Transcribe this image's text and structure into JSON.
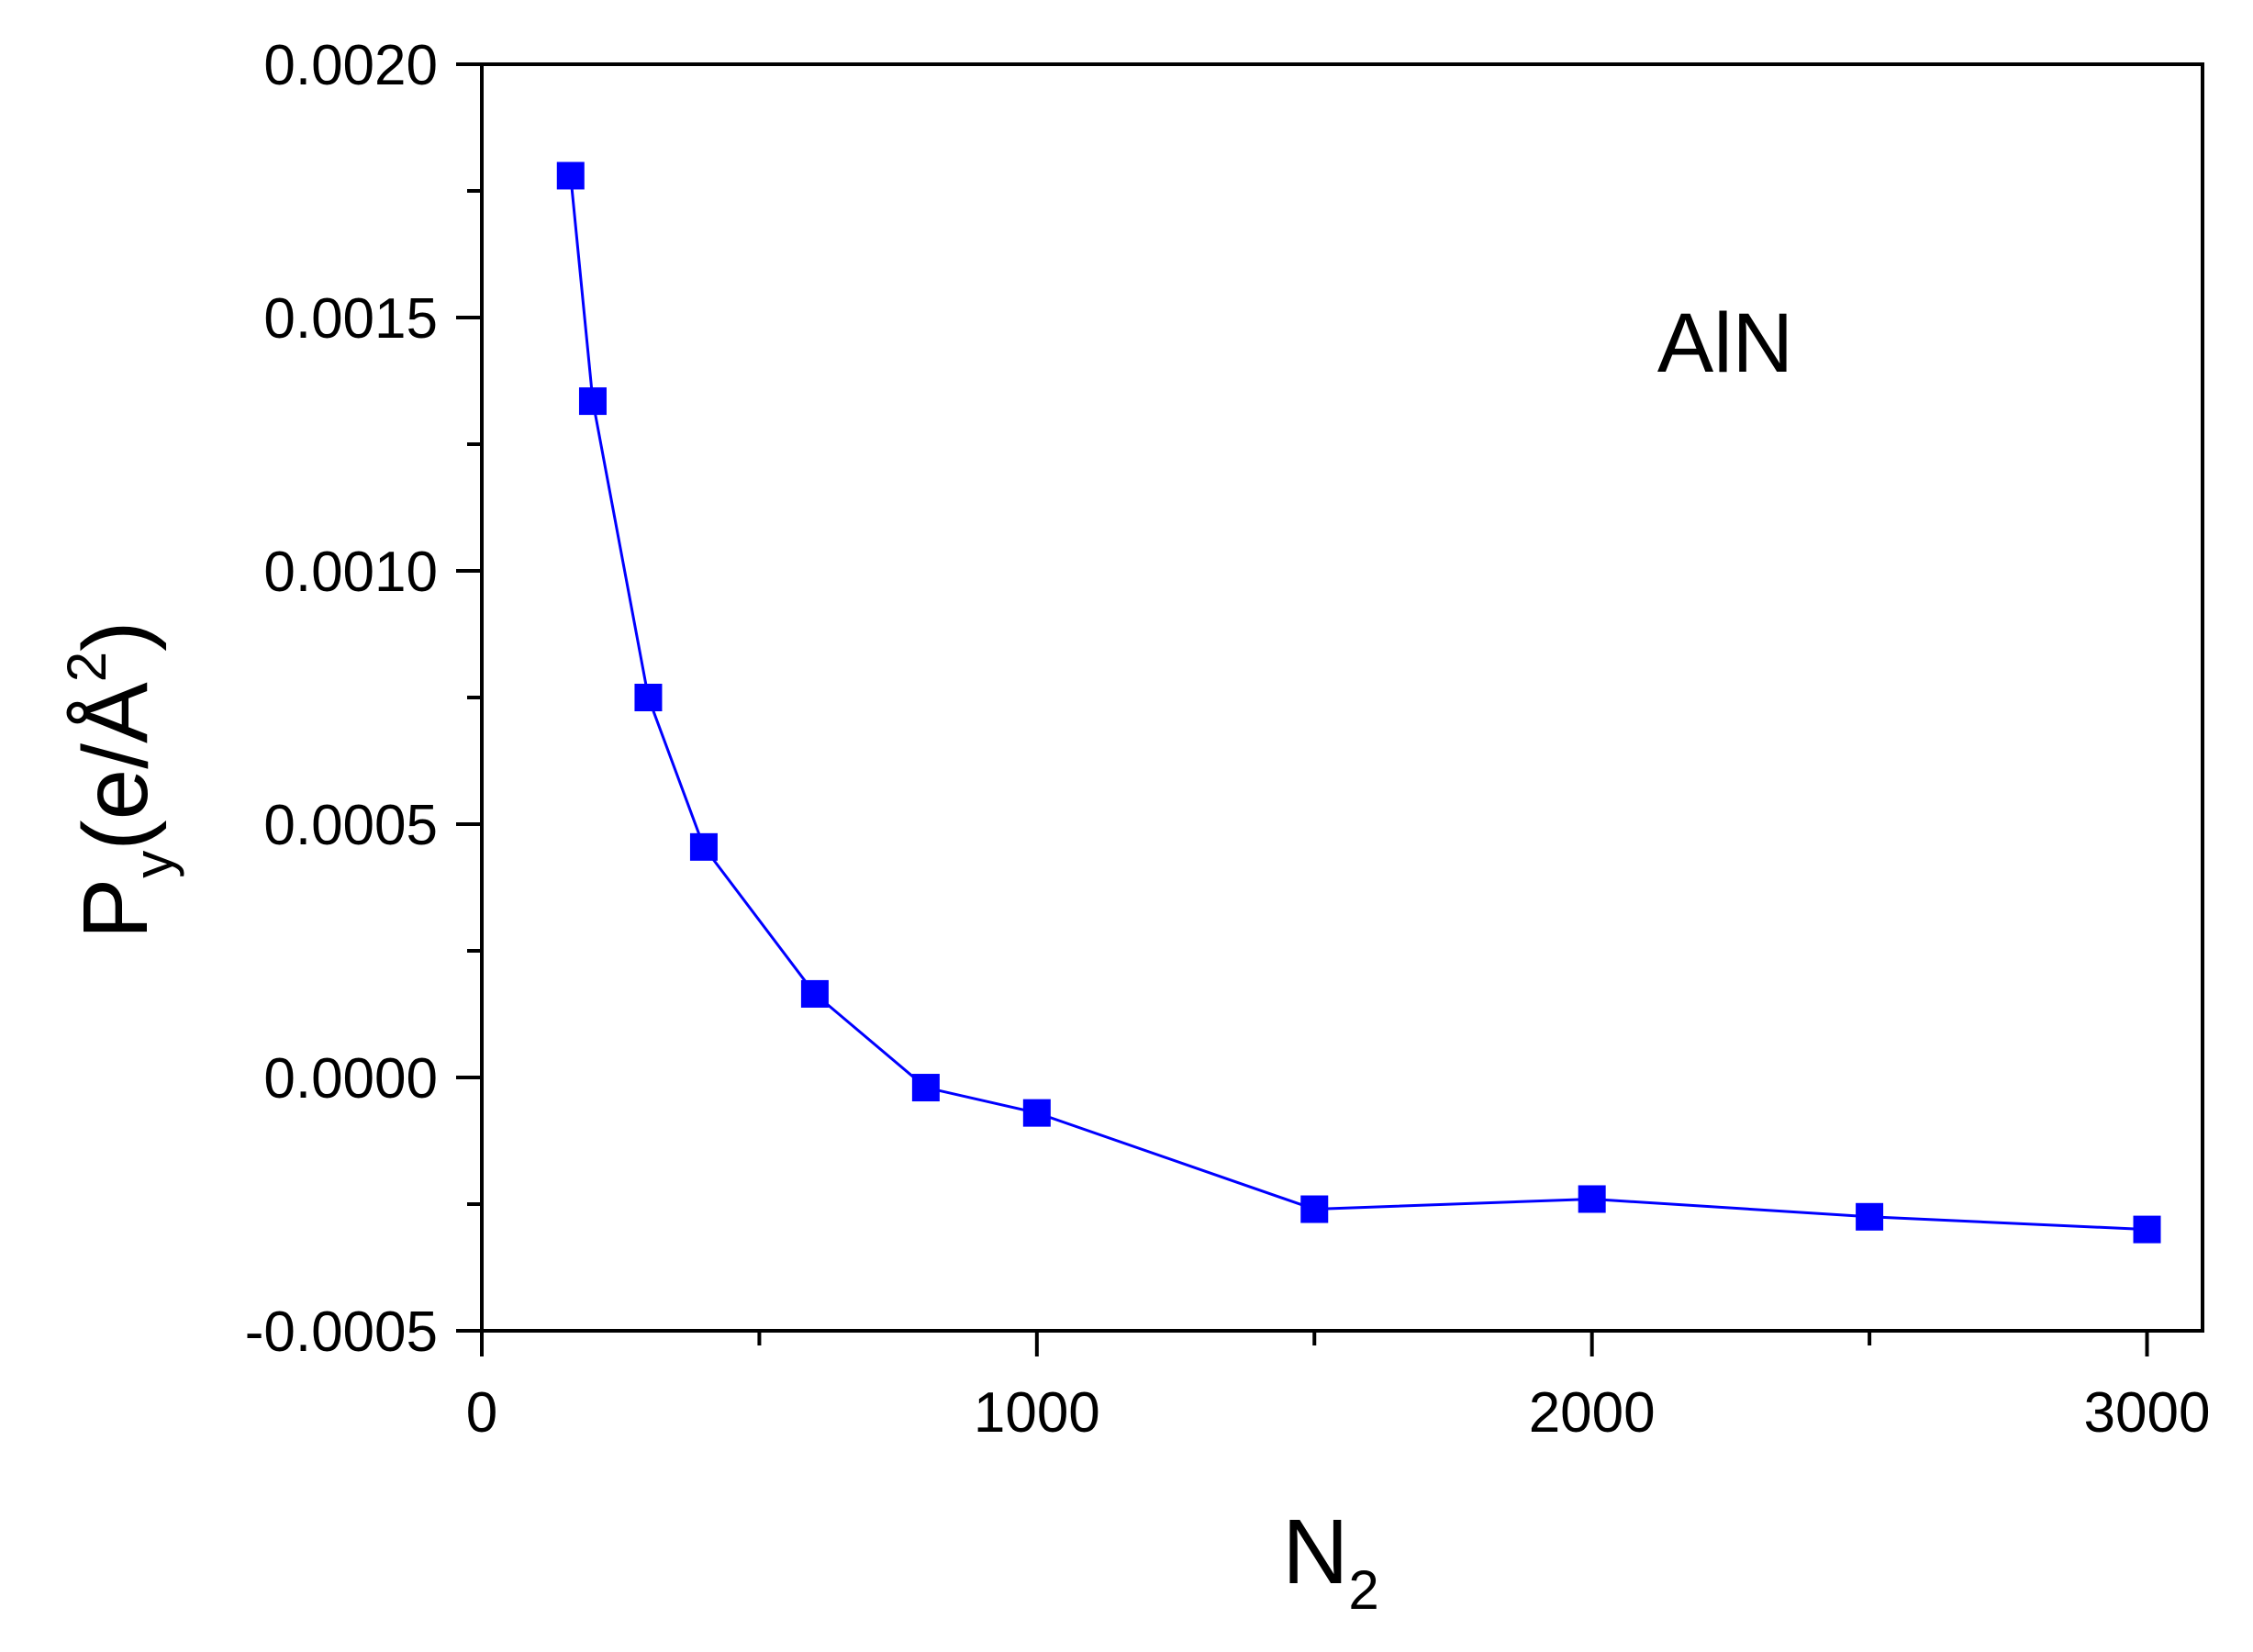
{
  "chart_data": {
    "type": "line",
    "x": [
      160,
      200,
      300,
      400,
      600,
      800,
      1000,
      1500,
      2000,
      2500,
      3000
    ],
    "series": [
      {
        "values": [
          0.00178,
          0.001335,
          0.00075,
          0.000455,
          0.000165,
          -2e-05,
          -7e-05,
          -0.00026,
          -0.00024,
          -0.000275,
          -0.0003
        ],
        "color": "#0000ff",
        "marker": "square"
      }
    ],
    "xlabel": {
      "main": "N",
      "sub": "2"
    },
    "ylabel": {
      "main": "P",
      "sub": "y",
      "unit_open": "(e/Å",
      "unit_sup": "2",
      "unit_close": ")"
    },
    "xlim": [
      0,
      3100
    ],
    "ylim": [
      -0.0005,
      0.002
    ],
    "x_major_ticks": [
      0,
      1000,
      2000,
      3000
    ],
    "x_tick_labels": [
      "0",
      "1000",
      "2000",
      "3000"
    ],
    "x_minor_ticks": [
      500,
      1500,
      2500
    ],
    "y_major_ticks": [
      -0.0005,
      0.0,
      0.0005,
      0.001,
      0.0015,
      0.002
    ],
    "y_tick_labels": [
      "-0.0005",
      "0.0000",
      "0.0005",
      "0.0010",
      "0.0015",
      "0.0020"
    ],
    "y_minor_ticks": [
      -0.00025,
      0.00025,
      0.00075,
      0.00125,
      0.00175
    ],
    "annotation": "AlN",
    "grid": false,
    "legend": "none"
  }
}
